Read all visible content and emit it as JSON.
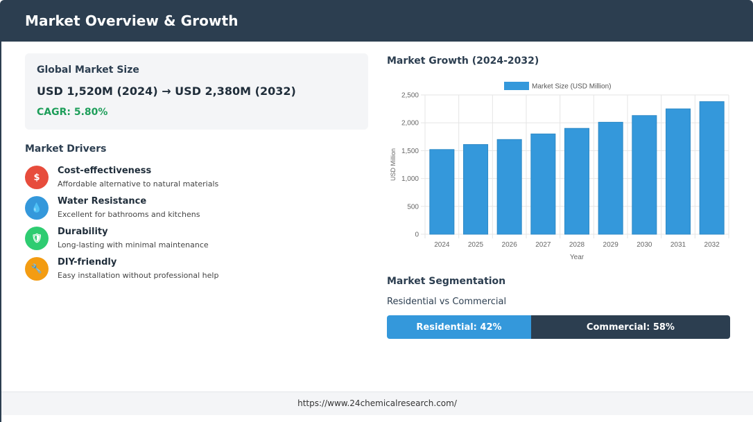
{
  "header": {
    "title": "Market Overview & Growth"
  },
  "market_size": {
    "title": "Global Market Size",
    "value": "USD 1,520M (2024) → USD 2,380M (2032)",
    "cagr": "CAGR: 5.80%"
  },
  "drivers": {
    "title": "Market Drivers",
    "items": [
      {
        "title": "Cost-effectiveness",
        "desc": "Affordable alternative to natural materials",
        "icon": "dollar-icon",
        "glyph": "$",
        "color": "#e74c3c"
      },
      {
        "title": "Water Resistance",
        "desc": "Excellent for bathrooms and kitchens",
        "icon": "water-drop-icon",
        "glyph": "💧",
        "color": "#3498db"
      },
      {
        "title": "Durability",
        "desc": "Long-lasting with minimal maintenance",
        "icon": "shield-icon",
        "glyph": "🛡",
        "color": "#2ecc71"
      },
      {
        "title": "DIY-friendly",
        "desc": "Easy installation without professional help",
        "icon": "wrench-icon",
        "glyph": "🔧",
        "color": "#f39c12"
      }
    ]
  },
  "growth": {
    "title": "Market Growth (2024-2032)"
  },
  "chart_data": {
    "type": "bar",
    "categories": [
      "2024",
      "2025",
      "2026",
      "2027",
      "2028",
      "2029",
      "2030",
      "2031",
      "2032"
    ],
    "series": [
      {
        "name": "Market Size (USD Million)",
        "values": [
          1520,
          1610,
          1700,
          1800,
          1900,
          2010,
          2130,
          2250,
          2380
        ],
        "color": "#3498db"
      }
    ],
    "xlabel": "Year",
    "ylabel": "USD Million",
    "ylim": [
      0,
      2500
    ],
    "yticks": [
      "0",
      "500",
      "1,000",
      "1,500",
      "2,000",
      "2,500"
    ],
    "grid": true,
    "legend": "top-center"
  },
  "segmentation": {
    "title": "Market Segmentation",
    "subtitle": "Residential vs Commercial",
    "parts": [
      {
        "label": "Residential: 42%",
        "share": 42,
        "color": "#3498db"
      },
      {
        "label": "Commercial: 58%",
        "share": 58,
        "color": "#2c3e50"
      }
    ]
  },
  "footer": {
    "url": "https://www.24chemicalresearch.com/"
  }
}
